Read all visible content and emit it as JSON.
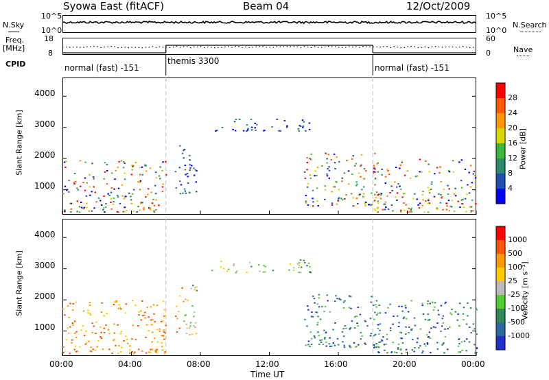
{
  "header": {
    "site": "Syowa East (fitACF)",
    "beam": "Beam 04",
    "date": "12/Oct/2009"
  },
  "top_panels": {
    "nsky_label": "N.Sky",
    "nsky_top_tick": "10^5",
    "nsky_bottom_tick": "10^0",
    "nsearch_top_tick": "10^5",
    "nsearch_bottom_tick": "10^0",
    "nsearch_label": "N.Search",
    "freq_label_line1": "Freq.",
    "freq_label_line2": "[MHz]",
    "freq_top_tick": "18",
    "freq_bottom_tick": "8",
    "nave_top_tick": "60",
    "nave_bottom_tick": "0",
    "nave_label": "Nave",
    "cpid_label": "CPID",
    "modes": [
      {
        "label": "normal (fast) -151",
        "start_hour": 0,
        "end_hour": 6
      },
      {
        "label": "themis 3300",
        "start_hour": 6,
        "end_hour": 18
      },
      {
        "label": "normal (fast) -151",
        "start_hour": 18,
        "end_hour": 24
      }
    ]
  },
  "chart_data": [
    {
      "type": "heatmap",
      "panel": "power",
      "ylabel": "Slant Range [km]",
      "y_ticks": [
        "1000",
        "2000",
        "3000",
        "4000"
      ],
      "ylim": [
        200,
        4600
      ],
      "xlim": [
        0,
        24
      ],
      "colorbar_label": "Power [dB]",
      "colorbar_ticks": [
        "4",
        "8",
        "12",
        "16",
        "20",
        "24",
        "28"
      ],
      "colorbar_colors": [
        "#0000ff",
        "#1f4fb0",
        "#2a8a6a",
        "#3cb83c",
        "#d8d800",
        "#ff9900",
        "#ff5a00",
        "#ff0000"
      ],
      "echo_regions": [
        {
          "t0": 0.0,
          "t1": 6.0,
          "r0": 300,
          "r1": 2000,
          "level": "mixed"
        },
        {
          "t0": 6.5,
          "t1": 7.8,
          "r0": 900,
          "r1": 2500,
          "level": "low"
        },
        {
          "t0": 8.5,
          "t1": 14.5,
          "r0": 2900,
          "r1": 3300,
          "level": "low"
        },
        {
          "t0": 14.0,
          "t1": 18.5,
          "r0": 500,
          "r1": 2200,
          "level": "mixed"
        },
        {
          "t0": 18.0,
          "t1": 24.0,
          "r0": 300,
          "r1": 2000,
          "level": "mixed"
        }
      ]
    },
    {
      "type": "heatmap",
      "panel": "velocity",
      "ylabel": "Slant Range [km]",
      "y_ticks": [
        "1000",
        "2000",
        "3000",
        "4000"
      ],
      "ylim": [
        200,
        4600
      ],
      "xlim": [
        0,
        24
      ],
      "x_ticks": [
        "00:00",
        "04:00",
        "08:00",
        "12:00",
        "16:00",
        "20:00",
        "00:00"
      ],
      "xlabel": "Time UT",
      "colorbar_label": "Velocity [m s⁻¹]",
      "colorbar_ticks": [
        "1000",
        "500",
        "100",
        "25",
        "-25",
        "-100",
        "-500",
        "-1000"
      ],
      "colorbar_colors": [
        "#2030c8",
        "#2c6aa0",
        "#2e8a5a",
        "#55cc33",
        "#bbbbbb",
        "#ffcc00",
        "#ff9900",
        "#ff5500",
        "#ff0000"
      ]
    }
  ]
}
